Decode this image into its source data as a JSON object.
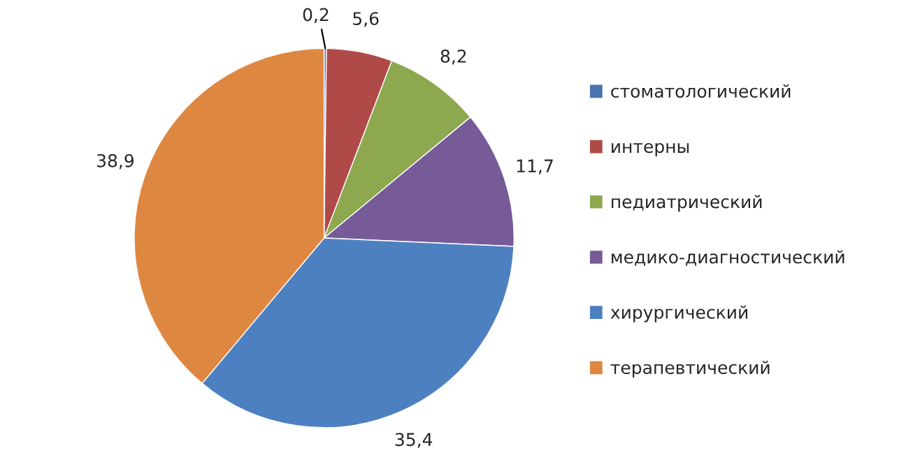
{
  "chart_data": {
    "type": "pie",
    "categories": [
      "стоматологический",
      "интерны",
      "педиатрический",
      "медико-диагностический",
      "хирургический",
      "терапевтический"
    ],
    "values": [
      0.2,
      5.6,
      8.2,
      11.7,
      35.4,
      38.9
    ],
    "colors": [
      "#4a72b0",
      "#b04a48",
      "#8ea84f",
      "#775a98",
      "#4d80c0",
      "#de8741"
    ],
    "value_labels": [
      "0,2",
      "5,6",
      "8,2",
      "11,7",
      "35,4",
      "38,9"
    ],
    "legend": "right"
  }
}
